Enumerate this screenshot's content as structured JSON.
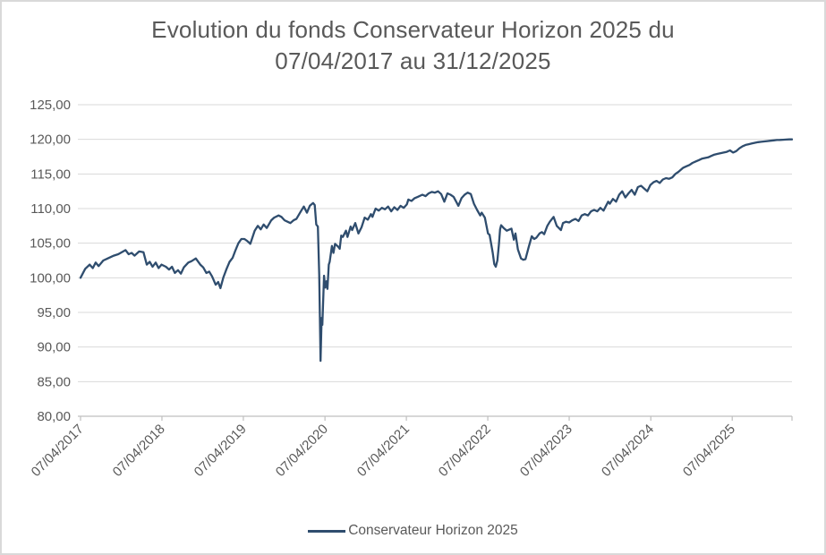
{
  "title": {
    "line1": "Evolution du fonds Conservateur Horizon 2025 du",
    "line2": "07/04/2017 au 31/12/2025"
  },
  "legend": {
    "label": "Conservateur Horizon 2025"
  },
  "colors": {
    "series": "#2f4d6e",
    "grid": "#d9d9d9",
    "axis": "#bfbfbf",
    "text": "#595959",
    "frame": "#d9d9d9",
    "background": "#ffffff"
  },
  "chart_data": {
    "type": "line",
    "title": "Evolution du fonds Conservateur Horizon 2025 du 07/04/2017 au 31/12/2025",
    "legend_position": "bottom",
    "grid": "horizontal",
    "x_axis": {
      "start": "07/04/2017",
      "end": "31/12/2025",
      "tick_labels": [
        "07/04/2017",
        "07/04/2018",
        "07/04/2019",
        "07/04/2020",
        "07/04/2021",
        "07/04/2022",
        "07/04/2023",
        "07/04/2024",
        "07/04/2025"
      ],
      "tick_rotation_deg": -45
    },
    "y_axis": {
      "min": 80,
      "max": 125,
      "step": 5,
      "tick_values": [
        80,
        85,
        90,
        95,
        100,
        105,
        110,
        115,
        120,
        125
      ],
      "tick_labels": [
        "80,00",
        "85,00",
        "90,00",
        "95,00",
        "100,00",
        "105,00",
        "110,00",
        "115,00",
        "120,00",
        "125,00"
      ]
    },
    "series": [
      {
        "name": "Conservateur Horizon 2025",
        "color": "#2f4d6e",
        "points": [
          [
            "07/04/2017",
            100.0
          ],
          [
            "28/04/2017",
            101.3
          ],
          [
            "18/05/2017",
            101.9
          ],
          [
            "01/06/2017",
            101.4
          ],
          [
            "14/06/2017",
            102.2
          ],
          [
            "27/06/2017",
            101.7
          ],
          [
            "18/07/2017",
            102.5
          ],
          [
            "07/08/2017",
            102.8
          ],
          [
            "03/09/2017",
            103.2
          ],
          [
            "23/09/2017",
            103.4
          ],
          [
            "26/10/2017",
            104.0
          ],
          [
            "09/11/2017",
            103.4
          ],
          [
            "22/11/2017",
            103.6
          ],
          [
            "05/12/2017",
            103.2
          ],
          [
            "26/12/2017",
            103.8
          ],
          [
            "14/01/2018",
            103.7
          ],
          [
            "29/01/2018",
            101.9
          ],
          [
            "11/02/2018",
            102.3
          ],
          [
            "24/02/2018",
            101.6
          ],
          [
            "10/03/2018",
            102.2
          ],
          [
            "23/03/2018",
            101.4
          ],
          [
            "05/04/2018",
            101.9
          ],
          [
            "25/04/2018",
            101.6
          ],
          [
            "09/05/2018",
            101.2
          ],
          [
            "22/05/2018",
            101.6
          ],
          [
            "04/06/2018",
            100.7
          ],
          [
            "18/06/2018",
            101.1
          ],
          [
            "01/07/2018",
            100.6
          ],
          [
            "14/07/2018",
            101.5
          ],
          [
            "03/08/2018",
            102.2
          ],
          [
            "17/08/2018",
            102.4
          ],
          [
            "06/09/2018",
            102.8
          ],
          [
            "26/09/2018",
            101.9
          ],
          [
            "09/10/2018",
            101.5
          ],
          [
            "23/10/2018",
            100.7
          ],
          [
            "05/11/2018",
            100.9
          ],
          [
            "18/11/2018",
            100.2
          ],
          [
            "04/12/2018",
            99.0
          ],
          [
            "15/12/2018",
            99.4
          ],
          [
            "25/12/2018",
            98.5
          ],
          [
            "08/01/2019",
            100.1
          ],
          [
            "22/01/2019",
            101.3
          ],
          [
            "04/02/2019",
            102.3
          ],
          [
            "18/02/2019",
            102.9
          ],
          [
            "03/03/2019",
            104.0
          ],
          [
            "16/03/2019",
            105.0
          ],
          [
            "29/03/2019",
            105.6
          ],
          [
            "12/04/2019",
            105.6
          ],
          [
            "25/04/2019",
            105.3
          ],
          [
            "08/05/2019",
            104.9
          ],
          [
            "28/05/2019",
            106.8
          ],
          [
            "11/06/2019",
            107.5
          ],
          [
            "24/06/2019",
            107.0
          ],
          [
            "07/07/2019",
            107.7
          ],
          [
            "21/07/2019",
            107.2
          ],
          [
            "10/08/2019",
            108.3
          ],
          [
            "23/08/2019",
            108.7
          ],
          [
            "12/09/2019",
            109.0
          ],
          [
            "25/09/2019",
            108.8
          ],
          [
            "09/10/2019",
            108.3
          ],
          [
            "22/10/2019",
            108.1
          ],
          [
            "04/11/2019",
            107.9
          ],
          [
            "18/11/2019",
            108.3
          ],
          [
            "01/12/2019",
            108.5
          ],
          [
            "21/12/2019",
            109.6
          ],
          [
            "03/01/2020",
            110.3
          ],
          [
            "17/01/2020",
            109.4
          ],
          [
            "30/01/2020",
            110.4
          ],
          [
            "14/02/2020",
            110.8
          ],
          [
            "21/02/2020",
            110.5
          ],
          [
            "28/02/2020",
            107.7
          ],
          [
            "06/03/2020",
            107.4
          ],
          [
            "12/03/2020",
            100.5
          ],
          [
            "18/03/2020",
            88.0
          ],
          [
            "23/03/2020",
            94.2
          ],
          [
            "26/03/2020",
            93.2
          ],
          [
            "03/04/2020",
            100.3
          ],
          [
            "08/04/2020",
            98.6
          ],
          [
            "14/04/2020",
            99.5
          ],
          [
            "18/04/2020",
            98.4
          ],
          [
            "24/04/2020",
            101.9
          ],
          [
            "28/04/2020",
            102.3
          ],
          [
            "08/05/2020",
            104.6
          ],
          [
            "15/05/2020",
            103.6
          ],
          [
            "22/05/2020",
            104.9
          ],
          [
            "29/05/2020",
            104.7
          ],
          [
            "05/06/2020",
            104.5
          ],
          [
            "12/06/2020",
            104.2
          ],
          [
            "19/06/2020",
            106.1
          ],
          [
            "26/06/2020",
            105.9
          ],
          [
            "10/07/2020",
            106.8
          ],
          [
            "17/07/2020",
            105.9
          ],
          [
            "31/07/2020",
            107.4
          ],
          [
            "07/08/2020",
            106.9
          ],
          [
            "21/08/2020",
            107.9
          ],
          [
            "04/09/2020",
            106.4
          ],
          [
            "18/09/2020",
            107.3
          ],
          [
            "02/10/2020",
            108.7
          ],
          [
            "16/10/2020",
            108.4
          ],
          [
            "30/10/2020",
            109.2
          ],
          [
            "06/11/2020",
            108.8
          ],
          [
            "20/11/2020",
            110.0
          ],
          [
            "04/12/2020",
            109.7
          ],
          [
            "18/12/2020",
            110.1
          ],
          [
            "01/01/2021",
            109.9
          ],
          [
            "15/01/2021",
            110.3
          ],
          [
            "29/01/2021",
            109.6
          ],
          [
            "12/02/2021",
            110.2
          ],
          [
            "26/02/2021",
            109.8
          ],
          [
            "12/03/2021",
            110.4
          ],
          [
            "26/03/2021",
            110.1
          ],
          [
            "09/04/2021",
            110.6
          ],
          [
            "16/04/2021",
            111.3
          ],
          [
            "30/04/2021",
            111.1
          ],
          [
            "14/05/2021",
            111.5
          ],
          [
            "28/05/2021",
            111.7
          ],
          [
            "18/06/2021",
            112.0
          ],
          [
            "02/07/2021",
            111.8
          ],
          [
            "16/07/2021",
            112.2
          ],
          [
            "30/07/2021",
            112.4
          ],
          [
            "13/08/2021",
            112.3
          ],
          [
            "27/08/2021",
            112.5
          ],
          [
            "10/09/2021",
            112.1
          ],
          [
            "24/09/2021",
            111.0
          ],
          [
            "08/10/2021",
            112.2
          ],
          [
            "22/10/2021",
            112.0
          ],
          [
            "05/11/2021",
            111.7
          ],
          [
            "26/11/2021",
            110.4
          ],
          [
            "10/12/2021",
            111.5
          ],
          [
            "24/12/2021",
            112.0
          ],
          [
            "07/01/2022",
            112.3
          ],
          [
            "21/01/2022",
            112.1
          ],
          [
            "04/02/2022",
            110.7
          ],
          [
            "18/02/2022",
            109.8
          ],
          [
            "04/03/2022",
            109.0
          ],
          [
            "11/03/2022",
            109.4
          ],
          [
            "25/03/2022",
            108.7
          ],
          [
            "08/04/2022",
            106.4
          ],
          [
            "15/04/2022",
            106.2
          ],
          [
            "29/04/2022",
            103.6
          ],
          [
            "06/05/2022",
            102.0
          ],
          [
            "13/05/2022",
            101.6
          ],
          [
            "20/05/2022",
            102.5
          ],
          [
            "27/05/2022",
            104.8
          ],
          [
            "01/06/2022",
            107.0
          ],
          [
            "06/06/2022",
            107.6
          ],
          [
            "17/06/2022",
            107.2
          ],
          [
            "01/07/2022",
            106.8
          ],
          [
            "22/07/2022",
            107.1
          ],
          [
            "02/08/2022",
            105.5
          ],
          [
            "09/08/2022",
            106.4
          ],
          [
            "20/08/2022",
            104.1
          ],
          [
            "03/09/2022",
            102.8
          ],
          [
            "14/09/2022",
            102.6
          ],
          [
            "23/09/2022",
            102.7
          ],
          [
            "07/10/2022",
            104.4
          ],
          [
            "21/10/2022",
            106.0
          ],
          [
            "01/11/2022",
            105.6
          ],
          [
            "11/11/2022",
            105.8
          ],
          [
            "25/11/2022",
            106.4
          ],
          [
            "06/12/2022",
            106.6
          ],
          [
            "16/12/2022",
            106.3
          ],
          [
            "30/12/2022",
            107.5
          ],
          [
            "10/01/2023",
            108.1
          ],
          [
            "27/01/2023",
            108.8
          ],
          [
            "10/02/2023",
            107.5
          ],
          [
            "01/03/2023",
            106.9
          ],
          [
            "10/03/2023",
            107.9
          ],
          [
            "24/03/2023",
            108.1
          ],
          [
            "07/04/2023",
            108.0
          ],
          [
            "21/04/2023",
            108.3
          ],
          [
            "05/05/2023",
            108.5
          ],
          [
            "19/05/2023",
            108.2
          ],
          [
            "02/06/2023",
            109.0
          ],
          [
            "16/06/2023",
            109.2
          ],
          [
            "30/06/2023",
            109.0
          ],
          [
            "14/07/2023",
            109.6
          ],
          [
            "28/07/2023",
            109.8
          ],
          [
            "11/08/2023",
            109.6
          ],
          [
            "25/08/2023",
            110.1
          ],
          [
            "08/09/2023",
            109.7
          ],
          [
            "29/09/2023",
            111.0
          ],
          [
            "06/10/2023",
            110.7
          ],
          [
            "20/10/2023",
            111.4
          ],
          [
            "03/11/2023",
            111.0
          ],
          [
            "17/11/2023",
            112.0
          ],
          [
            "01/12/2023",
            112.5
          ],
          [
            "15/12/2023",
            111.6
          ],
          [
            "29/12/2023",
            112.2
          ],
          [
            "12/01/2024",
            112.7
          ],
          [
            "26/01/2024",
            112.0
          ],
          [
            "09/02/2024",
            113.1
          ],
          [
            "23/02/2024",
            113.3
          ],
          [
            "08/03/2024",
            112.9
          ],
          [
            "22/03/2024",
            112.5
          ],
          [
            "05/04/2024",
            113.4
          ],
          [
            "19/04/2024",
            113.8
          ],
          [
            "03/05/2024",
            114.0
          ],
          [
            "17/05/2024",
            113.7
          ],
          [
            "31/05/2024",
            114.2
          ],
          [
            "14/06/2024",
            114.4
          ],
          [
            "28/06/2024",
            114.3
          ],
          [
            "12/07/2024",
            114.5
          ],
          [
            "26/07/2024",
            115.0
          ],
          [
            "09/08/2024",
            115.3
          ],
          [
            "30/08/2024",
            115.9
          ],
          [
            "13/09/2024",
            116.1
          ],
          [
            "27/09/2024",
            116.3
          ],
          [
            "11/10/2024",
            116.6
          ],
          [
            "25/10/2024",
            116.8
          ],
          [
            "08/11/2024",
            117.0
          ],
          [
            "22/11/2024",
            117.2
          ],
          [
            "06/12/2024",
            117.3
          ],
          [
            "20/12/2024",
            117.4
          ],
          [
            "03/01/2025",
            117.6
          ],
          [
            "17/01/2025",
            117.8
          ],
          [
            "31/01/2025",
            117.9
          ],
          [
            "14/02/2025",
            118.0
          ],
          [
            "28/02/2025",
            118.1
          ],
          [
            "14/03/2025",
            118.2
          ],
          [
            "28/03/2025",
            118.4
          ],
          [
            "11/04/2025",
            118.1
          ],
          [
            "25/04/2025",
            118.3
          ],
          [
            "09/05/2025",
            118.7
          ],
          [
            "23/05/2025",
            119.0
          ],
          [
            "06/06/2025",
            119.2
          ],
          [
            "20/06/2025",
            119.3
          ],
          [
            "04/07/2025",
            119.4
          ],
          [
            "18/07/2025",
            119.5
          ],
          [
            "01/08/2025",
            119.6
          ],
          [
            "15/08/2025",
            119.65
          ],
          [
            "29/08/2025",
            119.7
          ],
          [
            "12/09/2025",
            119.75
          ],
          [
            "26/09/2025",
            119.8
          ],
          [
            "10/10/2025",
            119.85
          ],
          [
            "24/10/2025",
            119.9
          ],
          [
            "07/11/2025",
            119.92
          ],
          [
            "21/11/2025",
            119.95
          ],
          [
            "05/12/2025",
            119.97
          ],
          [
            "19/12/2025",
            120.0
          ],
          [
            "31/12/2025",
            120.0
          ]
        ]
      }
    ]
  }
}
